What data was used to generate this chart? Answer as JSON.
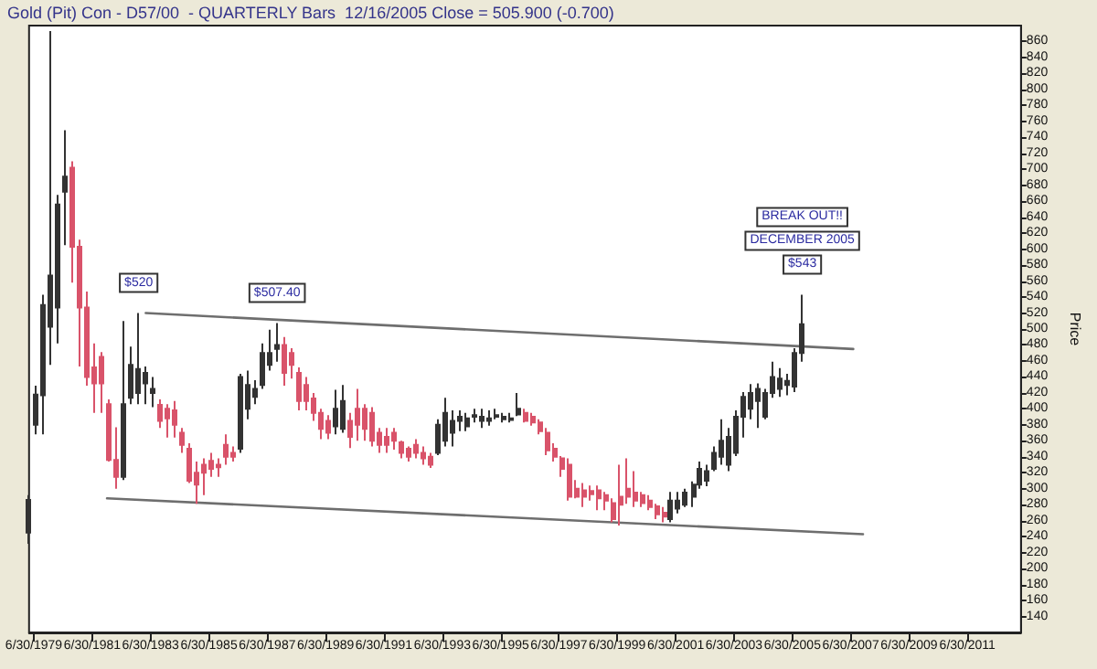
{
  "chart_data": {
    "type": "candlestick",
    "title": "Gold (Pit) Con - D57/00  - QUARTERLY Bars  12/16/2005 Close = 505.900 (-0.700)",
    "ylabel": "Price",
    "x": [
      "1979-05",
      "1979-08",
      "1979-11",
      "1980-02",
      "1980-05",
      "1980-08",
      "1980-11",
      "1981-02",
      "1981-05",
      "1981-08",
      "1981-11",
      "1982-02",
      "1982-05",
      "1982-08",
      "1982-11",
      "1983-02",
      "1983-05",
      "1983-08",
      "1983-11",
      "1984-02",
      "1984-05",
      "1984-08",
      "1984-11",
      "1985-02",
      "1985-05",
      "1985-08",
      "1985-11",
      "1986-02",
      "1986-05",
      "1986-08",
      "1986-11",
      "1987-02",
      "1987-05",
      "1987-08",
      "1987-11",
      "1988-02",
      "1988-05",
      "1988-08",
      "1988-11",
      "1989-02",
      "1989-05",
      "1989-08",
      "1989-11",
      "1990-02",
      "1990-05",
      "1990-08",
      "1990-11",
      "1991-02",
      "1991-05",
      "1991-08",
      "1991-11",
      "1992-02",
      "1992-05",
      "1992-08",
      "1992-11",
      "1993-02",
      "1993-05",
      "1993-08",
      "1993-11",
      "1994-02",
      "1994-05",
      "1994-08",
      "1994-11",
      "1995-02",
      "1995-05",
      "1995-08",
      "1995-11",
      "1996-02",
      "1996-05",
      "1996-08",
      "1996-11",
      "1997-02",
      "1997-05",
      "1997-08",
      "1997-11",
      "1998-02",
      "1998-05",
      "1998-08",
      "1998-11",
      "1999-02",
      "1999-05",
      "1999-08",
      "1999-11",
      "2000-02",
      "2000-05",
      "2000-08",
      "2000-11",
      "2001-02",
      "2001-05",
      "2001-08",
      "2001-11",
      "2002-02",
      "2002-05",
      "2002-08",
      "2002-11",
      "2003-02",
      "2003-05",
      "2003-08",
      "2003-11",
      "2004-02",
      "2004-05",
      "2004-08",
      "2004-11",
      "2005-02",
      "2005-05",
      "2005-08",
      "2005-11"
    ],
    "ohlc": [
      [
        245,
        292,
        231,
        286
      ],
      [
        380,
        429,
        368,
        418
      ],
      [
        417,
        543,
        368,
        530
      ],
      [
        503,
        873,
        455,
        567
      ],
      [
        527,
        668,
        482,
        656
      ],
      [
        672,
        749,
        605,
        691
      ],
      [
        702,
        710,
        558,
        603
      ],
      [
        603,
        612,
        453,
        527
      ],
      [
        527,
        547,
        429,
        440
      ],
      [
        452,
        482,
        395,
        432
      ],
      [
        465,
        471,
        395,
        432
      ],
      [
        406,
        412,
        334,
        336
      ],
      [
        336,
        377,
        300,
        315
      ],
      [
        315,
        510,
        311,
        406
      ],
      [
        414,
        478,
        406,
        455
      ],
      [
        420,
        520,
        406,
        450
      ],
      [
        432,
        453,
        406,
        445
      ],
      [
        420,
        440,
        402,
        425
      ],
      [
        405,
        412,
        376,
        385
      ],
      [
        400,
        406,
        364,
        388
      ],
      [
        398,
        410,
        364,
        380
      ],
      [
        370,
        376,
        345,
        355
      ],
      [
        350,
        357,
        307,
        310
      ],
      [
        320,
        334,
        281,
        305
      ],
      [
        330,
        338,
        292,
        320
      ],
      [
        335,
        345,
        315,
        325
      ],
      [
        330,
        338,
        315,
        327
      ],
      [
        355,
        368,
        330,
        340
      ],
      [
        345,
        353,
        334,
        340
      ],
      [
        350,
        444,
        345,
        440
      ],
      [
        400,
        448,
        387,
        430
      ],
      [
        415,
        436,
        406,
        425
      ],
      [
        430,
        482,
        425,
        470
      ],
      [
        455,
        499,
        448,
        470
      ],
      [
        475,
        507.4,
        459,
        480
      ],
      [
        480,
        490,
        429,
        445
      ],
      [
        470,
        476,
        438,
        455
      ],
      [
        445,
        452,
        398,
        410
      ],
      [
        430,
        440,
        398,
        410
      ],
      [
        413,
        420,
        385,
        395
      ],
      [
        395,
        400,
        362,
        375
      ],
      [
        385,
        392,
        362,
        370
      ],
      [
        378,
        424,
        368,
        400
      ],
      [
        375,
        430,
        370,
        410
      ],
      [
        385,
        395,
        351,
        365
      ],
      [
        400,
        425,
        360,
        380
      ],
      [
        400,
        406,
        360,
        375
      ],
      [
        395,
        402,
        353,
        360
      ],
      [
        370,
        376,
        345,
        355
      ],
      [
        365,
        376,
        345,
        355
      ],
      [
        370,
        376,
        349,
        360
      ],
      [
        358,
        360,
        338,
        345
      ],
      [
        350,
        353,
        334,
        340
      ],
      [
        355,
        362,
        338,
        345
      ],
      [
        345,
        353,
        330,
        338
      ],
      [
        340,
        345,
        326,
        330
      ],
      [
        345,
        387,
        342,
        380
      ],
      [
        360,
        414,
        353,
        395
      ],
      [
        370,
        398,
        353,
        385
      ],
      [
        385,
        398,
        372,
        390
      ],
      [
        378,
        395,
        372,
        388
      ],
      [
        390,
        400,
        383,
        392
      ],
      [
        385,
        400,
        376,
        390
      ],
      [
        385,
        398,
        379,
        388
      ],
      [
        390,
        400,
        387,
        392
      ],
      [
        387,
        395,
        383,
        390
      ],
      [
        386,
        395,
        383,
        388
      ],
      [
        393,
        420,
        391,
        400
      ],
      [
        395,
        400,
        383,
        385
      ],
      [
        390,
        395,
        379,
        383
      ],
      [
        383,
        387,
        368,
        372
      ],
      [
        370,
        376,
        342,
        348
      ],
      [
        350,
        357,
        334,
        340
      ],
      [
        338,
        341,
        315,
        325
      ],
      [
        330,
        338,
        285,
        290
      ],
      [
        300,
        311,
        288,
        290
      ],
      [
        298,
        307,
        277,
        290
      ],
      [
        297,
        304,
        285,
        293
      ],
      [
        298,
        304,
        273,
        288
      ],
      [
        292,
        296,
        273,
        285
      ],
      [
        282,
        288,
        258,
        262
      ],
      [
        290,
        330,
        254,
        280
      ],
      [
        300,
        338,
        281,
        290
      ],
      [
        295,
        322,
        277,
        285
      ],
      [
        292,
        296,
        277,
        282
      ],
      [
        285,
        292,
        273,
        277
      ],
      [
        278,
        281,
        262,
        268
      ],
      [
        270,
        277,
        258,
        265
      ],
      [
        262,
        296,
        258,
        285
      ],
      [
        275,
        296,
        269,
        285
      ],
      [
        280,
        300,
        277,
        295
      ],
      [
        290,
        309,
        277,
        305
      ],
      [
        305,
        334,
        300,
        325
      ],
      [
        310,
        330,
        303,
        322
      ],
      [
        325,
        353,
        322,
        345
      ],
      [
        340,
        387,
        330,
        360
      ],
      [
        330,
        376,
        322,
        365
      ],
      [
        345,
        398,
        341,
        390
      ],
      [
        390,
        421,
        364,
        415
      ],
      [
        400,
        431,
        387,
        420
      ],
      [
        410,
        432,
        376,
        425
      ],
      [
        390,
        425,
        387,
        420
      ],
      [
        420,
        459,
        414,
        440
      ],
      [
        425,
        451,
        415,
        438
      ],
      [
        430,
        444,
        417,
        435
      ],
      [
        428,
        476,
        421,
        470
      ],
      [
        470,
        543,
        459,
        506
      ]
    ],
    "colors": [
      "#333333",
      "#333333",
      "#333333",
      "#333333",
      "#333333",
      "#333333",
      "#d9536a",
      "#d9536a",
      "#d9536a",
      "#d9536a",
      "#d9536a",
      "#d9536a",
      "#d9536a",
      "#333333",
      "#333333",
      "#333333",
      "#333333",
      "#333333",
      "#d9536a",
      "#d9536a",
      "#d9536a",
      "#d9536a",
      "#d9536a",
      "#d9536a",
      "#d9536a",
      "#d9536a",
      "#d9536a",
      "#d9536a",
      "#d9536a",
      "#333333",
      "#333333",
      "#333333",
      "#333333",
      "#333333",
      "#333333",
      "#d9536a",
      "#d9536a",
      "#d9536a",
      "#d9536a",
      "#d9536a",
      "#d9536a",
      "#d9536a",
      "#333333",
      "#333333",
      "#d9536a",
      "#d9536a",
      "#d9536a",
      "#d9536a",
      "#d9536a",
      "#d9536a",
      "#d9536a",
      "#d9536a",
      "#d9536a",
      "#d9536a",
      "#d9536a",
      "#d9536a",
      "#333333",
      "#333333",
      "#333333",
      "#333333",
      "#333333",
      "#333333",
      "#333333",
      "#333333",
      "#333333",
      "#333333",
      "#333333",
      "#333333",
      "#d9536a",
      "#d9536a",
      "#d9536a",
      "#d9536a",
      "#d9536a",
      "#d9536a",
      "#d9536a",
      "#d9536a",
      "#d9536a",
      "#d9536a",
      "#d9536a",
      "#d9536a",
      "#d9536a",
      "#d9536a",
      "#d9536a",
      "#d9536a",
      "#d9536a",
      "#d9536a",
      "#d9536a",
      "#d9536a",
      "#333333",
      "#333333",
      "#333333",
      "#333333",
      "#333333",
      "#333333",
      "#333333",
      "#333333",
      "#333333",
      "#333333",
      "#333333",
      "#333333",
      "#333333",
      "#333333",
      "#333333",
      "#333333",
      "#333333",
      "#333333",
      "#333333"
    ],
    "series": [
      {
        "type": "line",
        "x": [
          "1983-05",
          "2007-08"
        ],
        "values": [
          520,
          475
        ],
        "color": "#6e6e6e"
      },
      {
        "type": "line",
        "x": [
          "1982-01",
          "2007-12"
        ],
        "values": [
          288,
          243
        ],
        "color": "#6e6e6e"
      }
    ],
    "marker": "none",
    "line_style": "solid",
    "grid": false,
    "xlim": [
      "1979-05",
      "2013-05"
    ],
    "xticks": [
      {
        "value": "1979-06-30",
        "label": "6/30/1979"
      },
      {
        "value": "1981-06-30",
        "label": "6/30/1981"
      },
      {
        "value": "1983-06-30",
        "label": "6/30/1983"
      },
      {
        "value": "1985-06-30",
        "label": "6/30/1985"
      },
      {
        "value": "1987-06-30",
        "label": "6/30/1987"
      },
      {
        "value": "1989-06-30",
        "label": "6/30/1989"
      },
      {
        "value": "1991-06-30",
        "label": "6/30/1991"
      },
      {
        "value": "1993-06-30",
        "label": "6/30/1993"
      },
      {
        "value": "1995-06-30",
        "label": "6/30/1995"
      },
      {
        "value": "1997-06-30",
        "label": "6/30/1997"
      },
      {
        "value": "1999-06-30",
        "label": "6/30/1999"
      },
      {
        "value": "2001-06-30",
        "label": "6/30/2001"
      },
      {
        "value": "2003-06-30",
        "label": "6/30/2003"
      },
      {
        "value": "2005-06-30",
        "label": "6/30/2005"
      },
      {
        "value": "2007-06-30",
        "label": "6/30/2007"
      },
      {
        "value": "2009-06-30",
        "label": "6/30/2009"
      },
      {
        "value": "2011-06-30",
        "label": "6/30/2011"
      }
    ],
    "ylim": [
      120,
      880
    ],
    "yticks": [
      140,
      160,
      180,
      200,
      220,
      240,
      260,
      280,
      300,
      320,
      340,
      360,
      380,
      400,
      420,
      440,
      460,
      480,
      500,
      520,
      540,
      560,
      580,
      600,
      620,
      640,
      660,
      680,
      700,
      720,
      740,
      760,
      780,
      800,
      820,
      840,
      860
    ],
    "annotations": [
      {
        "text": "$520",
        "x": "1983-02",
        "y": 520
      },
      {
        "text": "$507.40",
        "x": "1987-11",
        "y": 507.4
      },
      {
        "text": "$543",
        "x": "2005-11",
        "y": 543
      },
      "DECEMBER 2005",
      "BREAK OUT!!"
    ]
  }
}
